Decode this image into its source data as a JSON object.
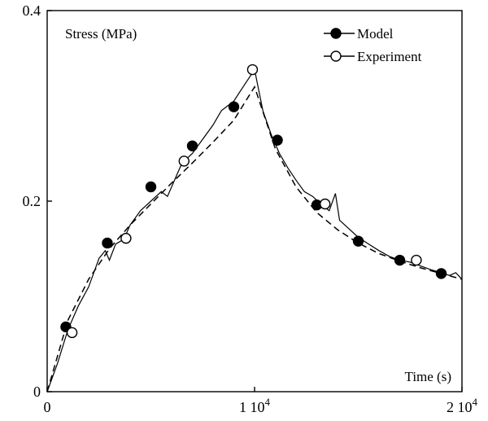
{
  "chart_data": {
    "type": "line",
    "ylabel": "Stress (MPa)",
    "xlabel": "Time (s)",
    "xlim": [
      0,
      20000
    ],
    "ylim": [
      0,
      0.4
    ],
    "grid": false,
    "legend_position": "top-right",
    "x_ticks": [
      {
        "value": 0,
        "label": "0"
      },
      {
        "value": 10000,
        "label": "1 10",
        "exp": "4"
      },
      {
        "value": 20000,
        "label": "2 10",
        "exp": "4"
      }
    ],
    "y_ticks": [
      {
        "value": 0,
        "label": "0"
      },
      {
        "value": 0.2,
        "label": "0.2"
      },
      {
        "value": 0.4,
        "label": "0.4"
      }
    ],
    "series": [
      {
        "name": "Model",
        "marker": "filled-circle",
        "line": "dashed",
        "curve": [
          [
            0,
            0
          ],
          [
            1000,
            0.075
          ],
          [
            2000,
            0.118
          ],
          [
            3000,
            0.15
          ],
          [
            4000,
            0.175
          ],
          [
            5000,
            0.197
          ],
          [
            6000,
            0.219
          ],
          [
            7000,
            0.24
          ],
          [
            8000,
            0.262
          ],
          [
            9000,
            0.285
          ],
          [
            10000,
            0.32
          ],
          [
            11000,
            0.255
          ],
          [
            12000,
            0.215
          ],
          [
            13000,
            0.188
          ],
          [
            14000,
            0.17
          ],
          [
            15000,
            0.156
          ],
          [
            16000,
            0.145
          ],
          [
            17000,
            0.137
          ],
          [
            18000,
            0.13
          ],
          [
            19000,
            0.124
          ],
          [
            20000,
            0.118
          ]
        ],
        "markers": [
          [
            900,
            0.068
          ],
          [
            2900,
            0.156
          ],
          [
            5000,
            0.215
          ],
          [
            7000,
            0.258
          ],
          [
            9000,
            0.299
          ],
          [
            11100,
            0.264
          ],
          [
            13000,
            0.196
          ],
          [
            15000,
            0.158
          ],
          [
            17000,
            0.138
          ],
          [
            19000,
            0.124
          ]
        ]
      },
      {
        "name": "Experiment",
        "marker": "open-circle",
        "line": "solid",
        "curve": [
          [
            0,
            0
          ],
          [
            500,
            0.03
          ],
          [
            1000,
            0.065
          ],
          [
            1500,
            0.09
          ],
          [
            2000,
            0.11
          ],
          [
            2500,
            0.14
          ],
          [
            2800,
            0.148
          ],
          [
            3000,
            0.138
          ],
          [
            3300,
            0.155
          ],
          [
            3700,
            0.16
          ],
          [
            4000,
            0.175
          ],
          [
            4500,
            0.19
          ],
          [
            5000,
            0.2
          ],
          [
            5500,
            0.21
          ],
          [
            5800,
            0.205
          ],
          [
            6200,
            0.225
          ],
          [
            6500,
            0.24
          ],
          [
            7000,
            0.25
          ],
          [
            7500,
            0.265
          ],
          [
            8000,
            0.28
          ],
          [
            8400,
            0.295
          ],
          [
            8700,
            0.3
          ],
          [
            9000,
            0.305
          ],
          [
            9300,
            0.315
          ],
          [
            9600,
            0.325
          ],
          [
            10000,
            0.338
          ],
          [
            10400,
            0.295
          ],
          [
            10800,
            0.27
          ],
          [
            11200,
            0.25
          ],
          [
            11600,
            0.235
          ],
          [
            12000,
            0.222
          ],
          [
            12400,
            0.21
          ],
          [
            12800,
            0.205
          ],
          [
            13200,
            0.197
          ],
          [
            13600,
            0.19
          ],
          [
            13900,
            0.208
          ],
          [
            14100,
            0.18
          ],
          [
            14500,
            0.172
          ],
          [
            15000,
            0.162
          ],
          [
            15500,
            0.155
          ],
          [
            16000,
            0.148
          ],
          [
            16500,
            0.142
          ],
          [
            17000,
            0.138
          ],
          [
            17500,
            0.136
          ],
          [
            18000,
            0.132
          ],
          [
            18500,
            0.128
          ],
          [
            19000,
            0.125
          ],
          [
            19400,
            0.122
          ],
          [
            19700,
            0.125
          ],
          [
            20000,
            0.118
          ]
        ],
        "markers": [
          [
            1200,
            0.062
          ],
          [
            3800,
            0.161
          ],
          [
            6600,
            0.242
          ],
          [
            9900,
            0.338
          ],
          [
            13400,
            0.197
          ],
          [
            17800,
            0.138
          ]
        ]
      }
    ]
  }
}
